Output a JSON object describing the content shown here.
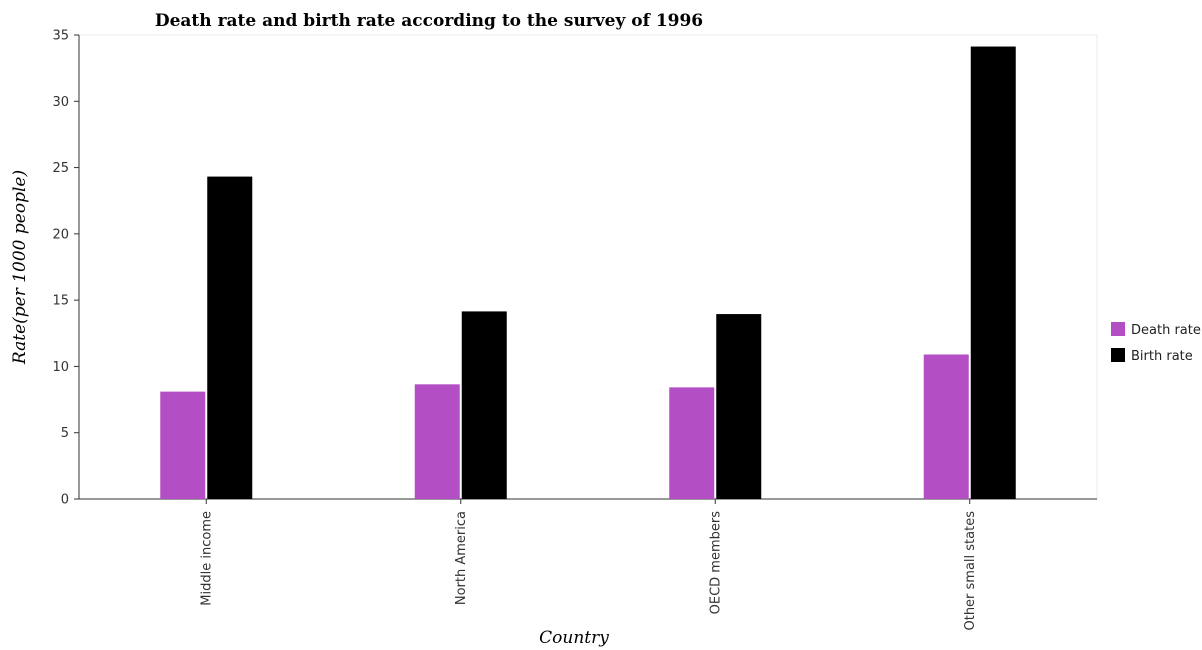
{
  "chart_data": {
    "type": "bar",
    "title": "Death rate and birth rate according to the survey of 1996",
    "xlabel": "Country",
    "ylabel": "Rate(per 1000 people)",
    "categories": [
      "Middle income",
      "North America",
      "OECD members",
      "Other small states"
    ],
    "series": [
      {
        "name": "Death rate",
        "color": "#b44ec4",
        "values": [
          8.1,
          8.65,
          8.42,
          10.9
        ]
      },
      {
        "name": "Birth rate",
        "color": "#000000",
        "values": [
          24.32,
          14.15,
          13.95,
          34.13
        ]
      }
    ],
    "ylim": [
      0,
      35
    ],
    "yticks": [
      0,
      5,
      10,
      15,
      20,
      25,
      30,
      35
    ],
    "grid": false,
    "legend_position": "right"
  }
}
